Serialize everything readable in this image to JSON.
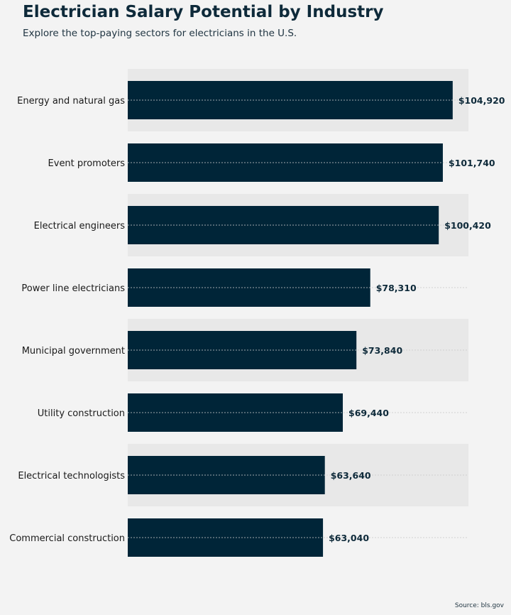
{
  "title": "Electrician Salary Potential by Industry",
  "subtitle": "Explore the top-paying sectors for electricians in the U.S.",
  "source": "Source: bls.gov",
  "colors": {
    "bar": "#002538",
    "band": "#e8e8e8",
    "background": "#f3f3f3",
    "label": "#0e2a3a"
  },
  "chart_data": {
    "type": "bar",
    "orientation": "horizontal",
    "categories": [
      "Energy and natural gas",
      "Event promoters",
      "Electrical engineers",
      "Power line electricians",
      "Municipal government",
      "Utility construction",
      "Electrical technologists",
      "Commercial construction"
    ],
    "values": [
      104920,
      101740,
      100420,
      78310,
      73840,
      69440,
      63640,
      63040
    ],
    "value_labels": [
      "$104,920",
      "$101,740",
      "$100,420",
      "$78,310",
      "$73,840",
      "$69,440",
      "$63,640",
      "$63,040"
    ],
    "xlim": [
      0,
      110000
    ],
    "grid": true,
    "alternating_bands": true
  }
}
